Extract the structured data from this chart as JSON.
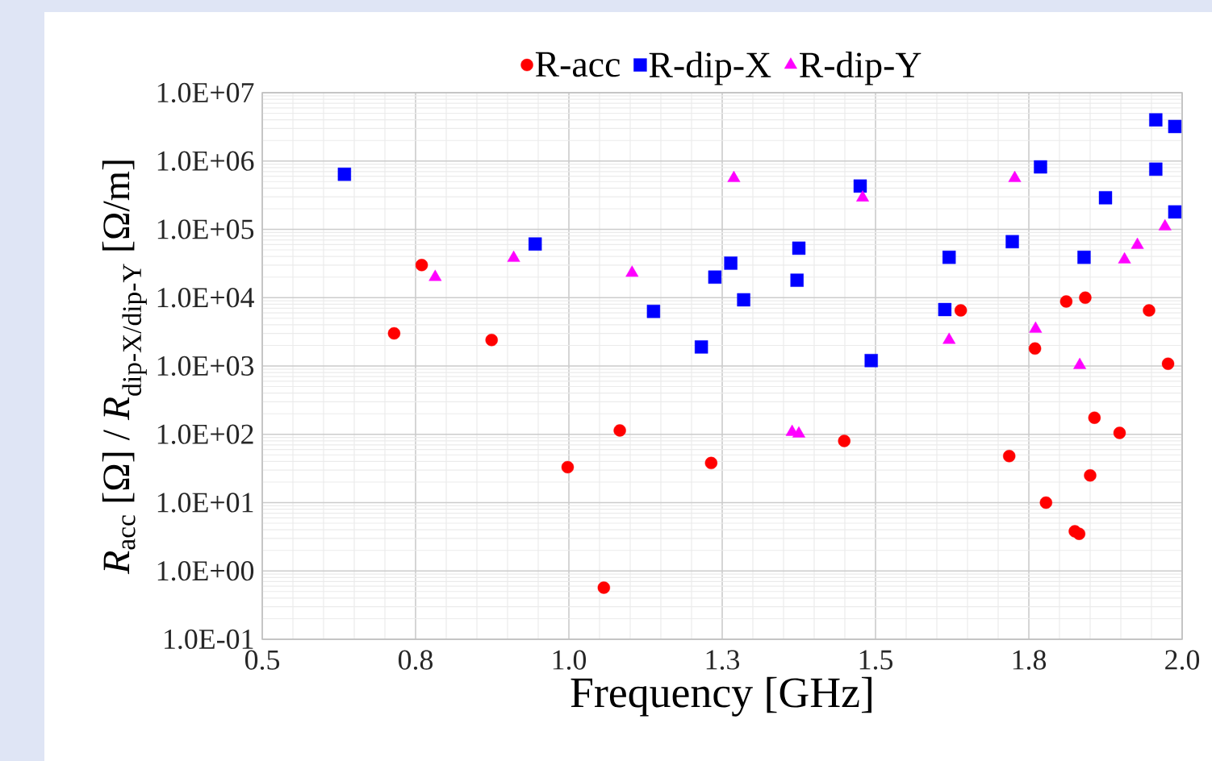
{
  "chart_data": {
    "type": "scatter",
    "xlabel": "Frequency [GHz]",
    "ylabel": "*R*$_{acc}$ [Ω] / *R*$_{dip-X/dip-Y}$ [Ω/m]",
    "xlim": [
      0.5,
      2.0
    ],
    "xticks": [
      {
        "value": 0.5,
        "label": "0.5"
      },
      {
        "value": 0.75,
        "label": "0.8"
      },
      {
        "value": 1.0,
        "label": "1.0"
      },
      {
        "value": 1.25,
        "label": "1.3"
      },
      {
        "value": 1.5,
        "label": "1.5"
      },
      {
        "value": 1.75,
        "label": "1.8"
      },
      {
        "value": 2.0,
        "label": "2.0"
      }
    ],
    "ylim": [
      0.1,
      10000000
    ],
    "yticks": [
      {
        "value": 0.1,
        "label": "1.0E-01"
      },
      {
        "value": 1,
        "label": "1.0E+00"
      },
      {
        "value": 10,
        "label": "1.0E+01"
      },
      {
        "value": 100,
        "label": "1.0E+02"
      },
      {
        "value": 1000,
        "label": "1.0E+03"
      },
      {
        "value": 10000,
        "label": "1.0E+04"
      },
      {
        "value": 100000,
        "label": "1.0E+05"
      },
      {
        "value": 1000000,
        "label": "1.0E+06"
      },
      {
        "value": 10000000,
        "label": "1.0E+07"
      }
    ],
    "log": "y",
    "grid": true,
    "legend": "top",
    "series": [
      {
        "name": "R-acc",
        "color": "#ff0000",
        "marker": "circle",
        "x": [
          0.715,
          0.76,
          0.874,
          0.998,
          1.057,
          1.083,
          1.232,
          1.449,
          1.639,
          1.718,
          1.76,
          1.778,
          1.811,
          1.825,
          1.832,
          1.842,
          1.85,
          1.857,
          1.898,
          1.946,
          1.977
        ],
        "values": [
          3000,
          30000,
          2400,
          33,
          0.57,
          114,
          38,
          80,
          6500,
          48,
          1800,
          10,
          8800,
          3.8,
          3.5,
          10000,
          25,
          175,
          105,
          6500,
          1080
        ]
      },
      {
        "name": "R-dip-X",
        "color": "#0000ff",
        "marker": "square",
        "x": [
          0.634,
          0.945,
          1.138,
          1.216,
          1.238,
          1.264,
          1.285,
          1.372,
          1.375,
          1.475,
          1.493,
          1.613,
          1.62,
          1.723,
          1.769,
          1.84,
          1.875,
          1.957,
          1.957,
          1.988,
          1.988
        ],
        "values": [
          640000,
          61000,
          6300,
          1900,
          20000,
          32000,
          9300,
          18000,
          53000,
          430000,
          1200,
          6700,
          39000,
          66000,
          820000,
          39000,
          290000,
          4000000,
          760000,
          3200000,
          180000
        ]
      },
      {
        "name": "R-dip-Y",
        "color": "#ff00ff",
        "marker": "triangle",
        "x": [
          0.782,
          0.91,
          1.103,
          1.269,
          1.364,
          1.375,
          1.479,
          1.62,
          1.727,
          1.761,
          1.833,
          1.906,
          1.927,
          1.972
        ],
        "values": [
          20000,
          38000,
          23000,
          560000,
          108,
          102,
          290000,
          2400,
          560000,
          3500,
          1030,
          36000,
          59000,
          110000
        ]
      }
    ]
  }
}
